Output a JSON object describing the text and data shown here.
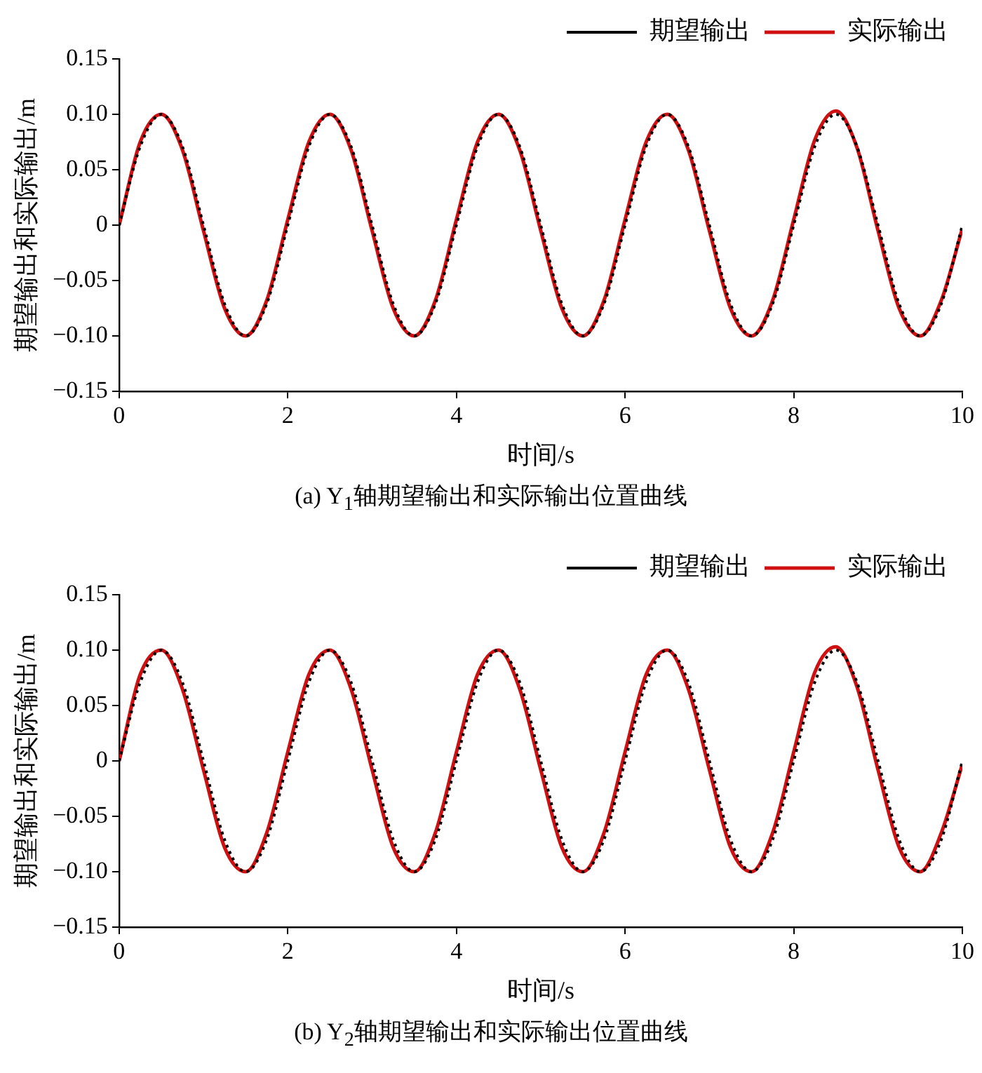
{
  "chart_data": [
    {
      "type": "line",
      "title": "(a) Y$_{1}$轴期望输出和实际输出位置曲线",
      "xlabel": "时间/s",
      "ylabel": "期望输出和实际输出/m",
      "x": [
        0,
        0.25,
        0.5,
        0.75,
        1,
        1.25,
        1.5,
        1.75,
        2,
        2.25,
        2.5,
        2.75,
        3,
        3.25,
        3.5,
        3.75,
        4,
        4.25,
        4.5,
        4.75,
        5,
        5.25,
        5.5,
        5.75,
        6,
        6.25,
        6.5,
        6.75,
        7,
        7.25,
        7.5,
        7.75,
        8,
        8.25,
        8.5,
        8.75,
        9,
        9.25,
        9.5,
        9.75,
        10
      ],
      "series": [
        {
          "name": "期望输出",
          "color": "#000000",
          "line_style": "dotted",
          "values": [
            0,
            0.071,
            0.1,
            0.071,
            0,
            -0.071,
            -0.1,
            -0.071,
            0,
            0.071,
            0.1,
            0.071,
            0,
            -0.071,
            -0.1,
            -0.071,
            0,
            0.071,
            0.1,
            0.071,
            0,
            -0.071,
            -0.1,
            -0.071,
            0,
            0.071,
            0.1,
            0.071,
            0,
            -0.071,
            -0.1,
            -0.071,
            0,
            0.071,
            0.1,
            0.071,
            0,
            -0.071,
            -0.1,
            -0.071,
            0
          ]
        },
        {
          "name": "实际输出",
          "color": "#d01010",
          "line_style": "solid",
          "values": [
            0,
            0.075,
            0.1,
            0.068,
            -0.005,
            -0.075,
            -0.1,
            -0.068,
            0.005,
            0.075,
            0.1,
            0.068,
            -0.005,
            -0.075,
            -0.1,
            -0.068,
            0.005,
            0.075,
            0.1,
            0.068,
            -0.005,
            -0.075,
            -0.1,
            -0.068,
            0.005,
            0.075,
            0.1,
            0.068,
            -0.005,
            -0.075,
            -0.1,
            -0.068,
            0.005,
            0.077,
            0.103,
            0.07,
            -0.005,
            -0.075,
            -0.1,
            -0.068,
            -0.003
          ]
        }
      ],
      "xlim": [
        0,
        10
      ],
      "xticks": [
        0,
        2,
        4,
        6,
        8,
        10
      ],
      "ylim": [
        -0.15,
        0.15
      ],
      "yticks": [
        {
          "value": -0.15,
          "label": "−0.15"
        },
        {
          "value": -0.1,
          "label": "−0.10"
        },
        {
          "value": -0.05,
          "label": "−0.05"
        },
        {
          "value": 0,
          "label": "0"
        },
        {
          "value": 0.05,
          "label": "0.05"
        },
        {
          "value": 0.1,
          "label": "0.10"
        },
        {
          "value": 0.15,
          "label": "0.15"
        }
      ],
      "grid": false,
      "legend": "top right",
      "marker": "none"
    },
    {
      "type": "line",
      "title": "(b) Y$_{2}$轴期望输出和实际输出位置曲线",
      "xlabel": "时间/s",
      "ylabel": "期望输出和实际输出/m",
      "x": [
        0,
        0.25,
        0.5,
        0.75,
        1,
        1.25,
        1.5,
        1.75,
        2,
        2.25,
        2.5,
        2.75,
        3,
        3.25,
        3.5,
        3.75,
        4,
        4.25,
        4.5,
        4.75,
        5,
        5.25,
        5.5,
        5.75,
        6,
        6.25,
        6.5,
        6.75,
        7,
        7.25,
        7.5,
        7.75,
        8,
        8.25,
        8.5,
        8.75,
        9,
        9.25,
        9.5,
        9.75,
        10
      ],
      "series": [
        {
          "name": "期望输出",
          "color": "#000000",
          "line_style": "dotted",
          "values": [
            0,
            0.071,
            0.1,
            0.071,
            0,
            -0.071,
            -0.1,
            -0.071,
            0,
            0.071,
            0.1,
            0.071,
            0,
            -0.071,
            -0.1,
            -0.071,
            0,
            0.071,
            0.1,
            0.071,
            0,
            -0.071,
            -0.1,
            -0.071,
            0,
            0.071,
            0.1,
            0.071,
            0,
            -0.071,
            -0.1,
            -0.071,
            0,
            0.071,
            0.1,
            0.071,
            0,
            -0.071,
            -0.1,
            -0.071,
            0
          ]
        },
        {
          "name": "实际输出",
          "color": "#d01010",
          "line_style": "solid",
          "values": [
            0,
            0.078,
            0.1,
            0.065,
            -0.008,
            -0.078,
            -0.1,
            -0.065,
            0.008,
            0.078,
            0.1,
            0.065,
            -0.008,
            -0.078,
            -0.1,
            -0.065,
            0.008,
            0.078,
            0.1,
            0.065,
            -0.008,
            -0.078,
            -0.1,
            -0.065,
            0.008,
            0.078,
            0.1,
            0.065,
            -0.008,
            -0.078,
            -0.1,
            -0.065,
            0.008,
            0.08,
            0.103,
            0.067,
            -0.008,
            -0.078,
            -0.1,
            -0.065,
            -0.003
          ]
        }
      ],
      "xlim": [
        0,
        10
      ],
      "xticks": [
        0,
        2,
        4,
        6,
        8,
        10
      ],
      "ylim": [
        -0.15,
        0.15
      ],
      "yticks": [
        {
          "value": -0.15,
          "label": "−0.15"
        },
        {
          "value": -0.1,
          "label": "−0.10"
        },
        {
          "value": -0.05,
          "label": "−0.05"
        },
        {
          "value": 0,
          "label": "0"
        },
        {
          "value": 0.05,
          "label": "0.05"
        },
        {
          "value": 0.1,
          "label": "0.10"
        },
        {
          "value": 0.15,
          "label": "0.15"
        }
      ],
      "grid": false,
      "legend": "top right",
      "marker": "none"
    }
  ]
}
